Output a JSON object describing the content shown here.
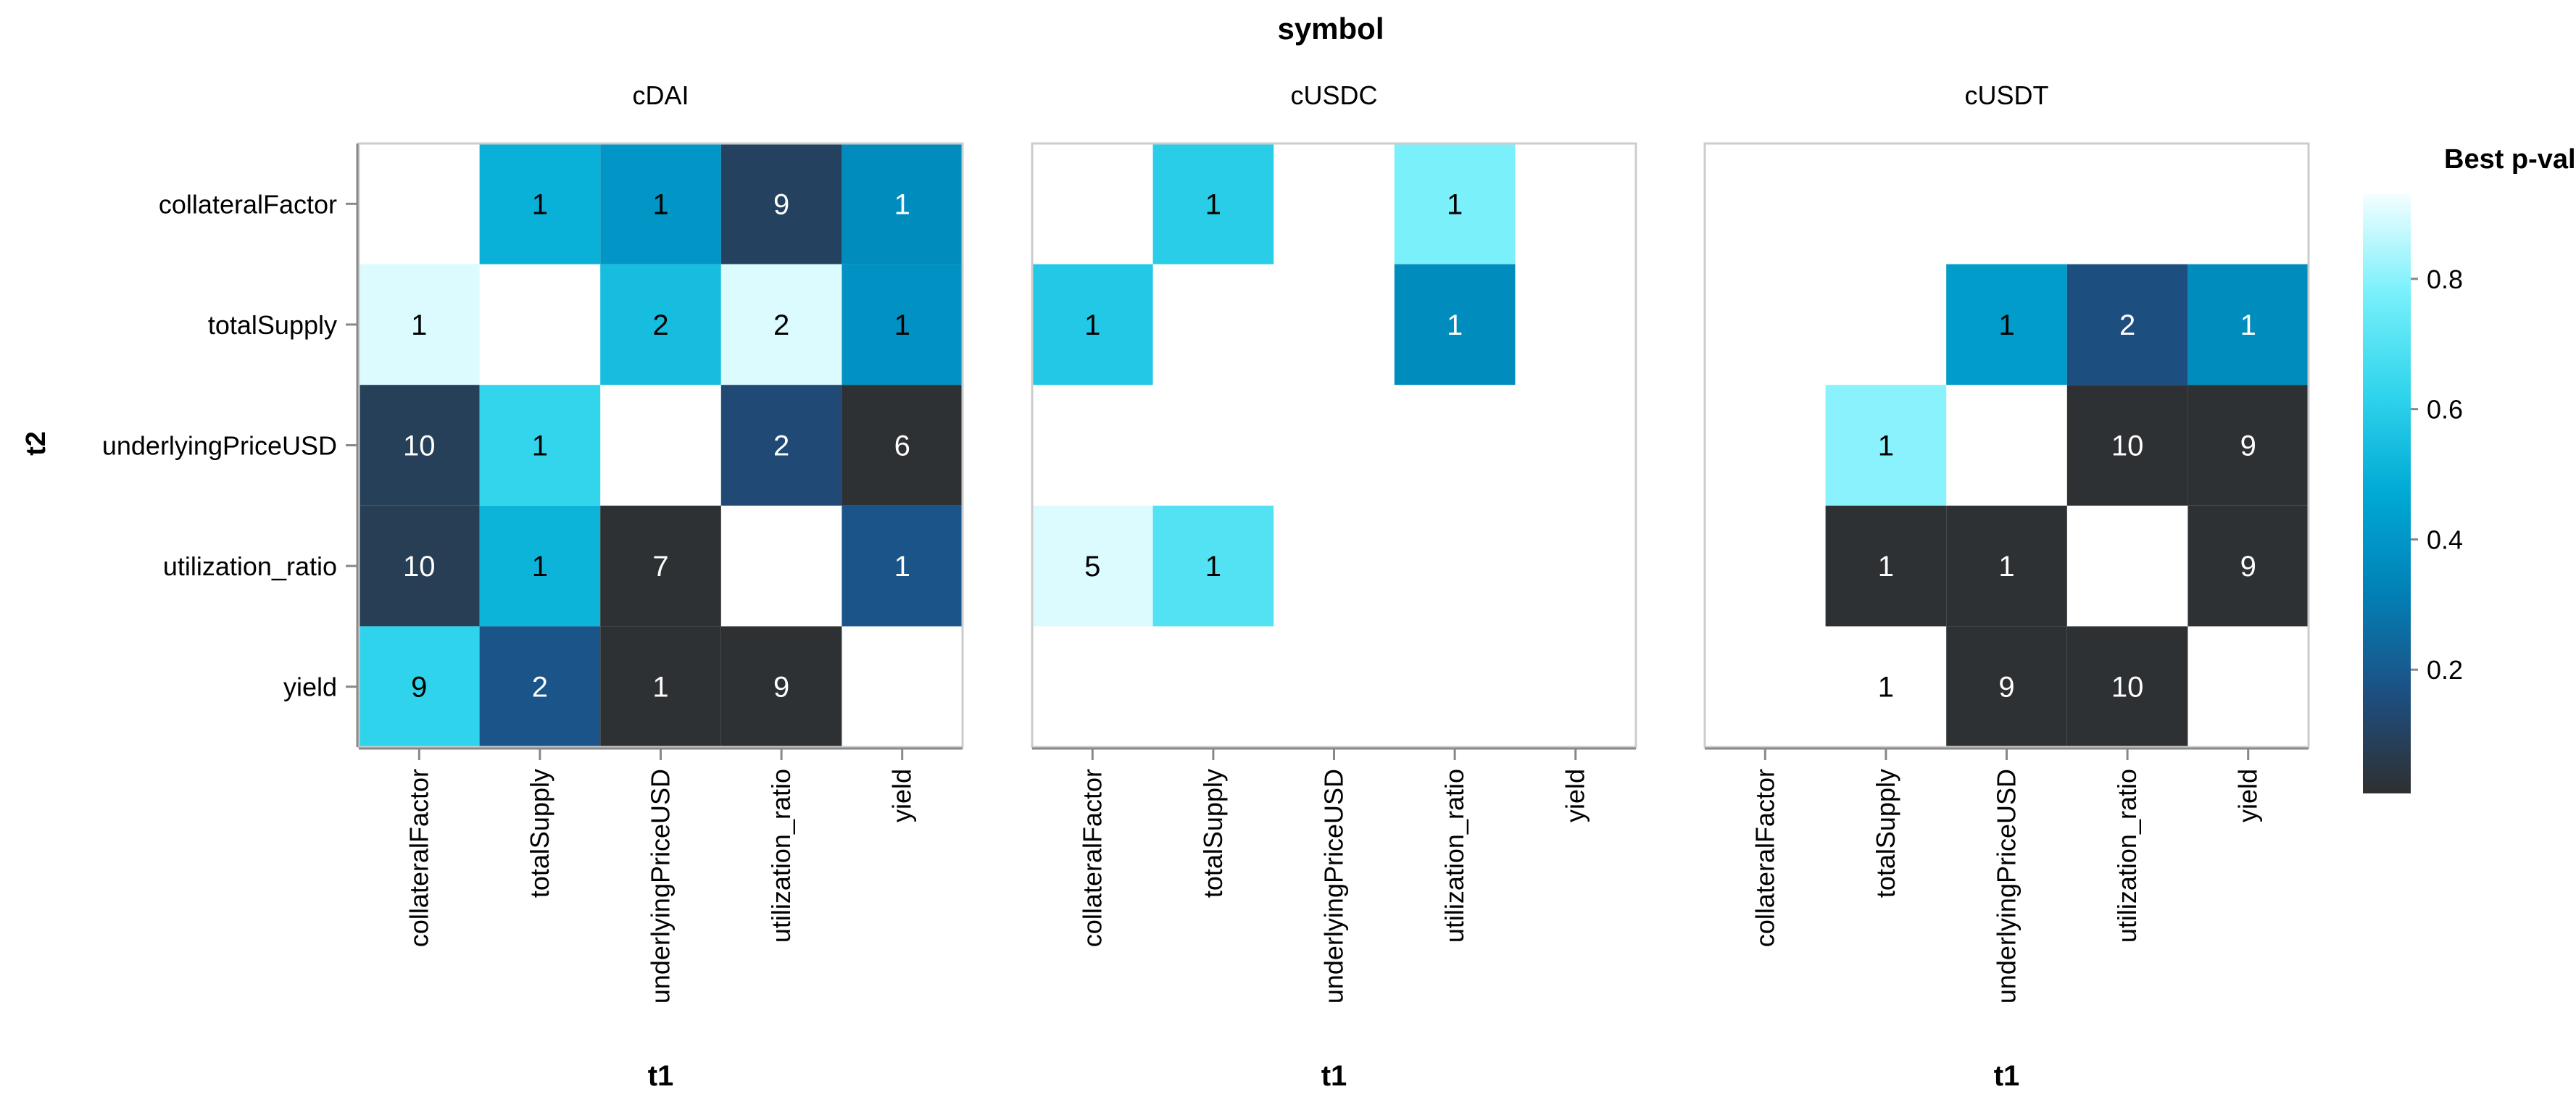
{
  "chart_data": {
    "type": "heatmap",
    "facet_title": "symbol",
    "x_title": "t1",
    "y_title": "t2",
    "legend_title": "Best p-value",
    "legend_ticks": [
      0.8,
      0.6,
      0.4,
      0.2
    ],
    "legend_domain": [
      0.01,
      0.93
    ],
    "categories": [
      "collateralFactor",
      "totalSupply",
      "underlyingPriceUSD",
      "utilization_ratio",
      "yield"
    ],
    "colors": [
      "#2f2f2f",
      "#1d4f82",
      "#0280b6",
      "#00a9d4",
      "#30d4ec",
      "#77f0fb",
      "#f3feff"
    ],
    "facets": [
      {
        "name": "cDAI",
        "cells": [
          {
            "x": "totalSupply",
            "y": "collateralFactor",
            "value": 0.5,
            "label": "1"
          },
          {
            "x": "underlyingPriceUSD",
            "y": "collateralFactor",
            "value": 0.4,
            "label": "1"
          },
          {
            "x": "utilization_ratio",
            "y": "collateralFactor",
            "value": 0.1,
            "label": "9"
          },
          {
            "x": "yield",
            "y": "collateralFactor",
            "value": 0.36,
            "label": "1"
          },
          {
            "x": "collateralFactor",
            "y": "totalSupply",
            "value": 0.9,
            "label": "1"
          },
          {
            "x": "underlyingPriceUSD",
            "y": "totalSupply",
            "value": 0.54,
            "label": "2"
          },
          {
            "x": "utilization_ratio",
            "y": "totalSupply",
            "value": 0.9,
            "label": "2"
          },
          {
            "x": "yield",
            "y": "totalSupply",
            "value": 0.38,
            "label": "1"
          },
          {
            "x": "collateralFactor",
            "y": "underlyingPriceUSD",
            "value": 0.09,
            "label": "10"
          },
          {
            "x": "totalSupply",
            "y": "underlyingPriceUSD",
            "value": 0.63,
            "label": "1"
          },
          {
            "x": "utilization_ratio",
            "y": "underlyingPriceUSD",
            "value": 0.14,
            "label": "2"
          },
          {
            "x": "yield",
            "y": "underlyingPriceUSD",
            "value": 0.02,
            "label": "6"
          },
          {
            "x": "collateralFactor",
            "y": "utilization_ratio",
            "value": 0.08,
            "label": "10"
          },
          {
            "x": "totalSupply",
            "y": "utilization_ratio",
            "value": 0.51,
            "label": "1"
          },
          {
            "x": "underlyingPriceUSD",
            "y": "utilization_ratio",
            "value": 0.02,
            "label": "7"
          },
          {
            "x": "yield",
            "y": "utilization_ratio",
            "value": 0.18,
            "label": "1"
          },
          {
            "x": "collateralFactor",
            "y": "yield",
            "value": 0.62,
            "label": "9"
          },
          {
            "x": "totalSupply",
            "y": "yield",
            "value": 0.18,
            "label": "2"
          },
          {
            "x": "underlyingPriceUSD",
            "y": "yield",
            "value": 0.02,
            "label": "1"
          },
          {
            "x": "utilization_ratio",
            "y": "yield",
            "value": 0.02,
            "label": "9"
          }
        ]
      },
      {
        "name": "cUSDC",
        "cells": [
          {
            "x": "totalSupply",
            "y": "collateralFactor",
            "value": 0.6,
            "label": "1"
          },
          {
            "x": "utilization_ratio",
            "y": "collateralFactor",
            "value": 0.78,
            "label": "1"
          },
          {
            "x": "collateralFactor",
            "y": "totalSupply",
            "value": 0.58,
            "label": "1"
          },
          {
            "x": "utilization_ratio",
            "y": "totalSupply",
            "value": 0.36,
            "label": "1"
          },
          {
            "x": "collateralFactor",
            "y": "utilization_ratio",
            "value": 0.9,
            "label": "5"
          },
          {
            "x": "totalSupply",
            "y": "utilization_ratio",
            "value": 0.7,
            "label": "1"
          }
        ]
      },
      {
        "name": "cUSDT",
        "cells": [
          {
            "x": "underlyingPriceUSD",
            "y": "totalSupply",
            "value": 0.42,
            "label": "1"
          },
          {
            "x": "utilization_ratio",
            "y": "totalSupply",
            "value": 0.16,
            "label": "2"
          },
          {
            "x": "yield",
            "y": "totalSupply",
            "value": 0.36,
            "label": "1"
          },
          {
            "x": "totalSupply",
            "y": "underlyingPriceUSD",
            "value": 0.8,
            "label": "1"
          },
          {
            "x": "utilization_ratio",
            "y": "underlyingPriceUSD",
            "value": 0.02,
            "label": "10"
          },
          {
            "x": "yield",
            "y": "underlyingPriceUSD",
            "value": 0.02,
            "label": "9"
          },
          {
            "x": "totalSupply",
            "y": "utilization_ratio",
            "value": 0.02,
            "label": "1"
          },
          {
            "x": "underlyingPriceUSD",
            "y": "utilization_ratio",
            "value": 0.02,
            "label": "1"
          },
          {
            "x": "yield",
            "y": "utilization_ratio",
            "value": 0.02,
            "label": "9"
          },
          {
            "x": "totalSupply",
            "y": "yield",
            "value": null,
            "label": "1"
          },
          {
            "x": "underlyingPriceUSD",
            "y": "yield",
            "value": 0.02,
            "label": "9"
          },
          {
            "x": "utilization_ratio",
            "y": "yield",
            "value": 0.02,
            "label": "10"
          }
        ]
      }
    ]
  }
}
